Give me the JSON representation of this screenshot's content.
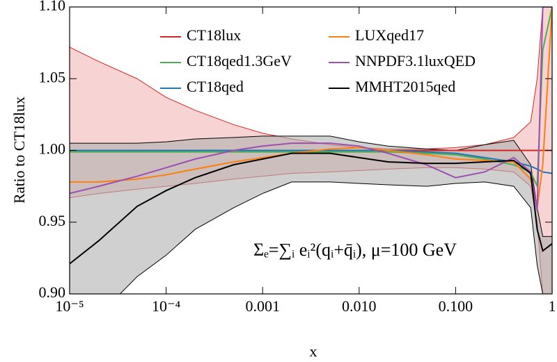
{
  "chart_data": {
    "type": "line",
    "annotation": "Σₑ=∑ᵢ eᵢ²(qᵢ+q̄ᵢ), μ=100 GeV",
    "x_label": "x",
    "y_label": "Ratio to CT18lux",
    "xscale": "log",
    "xlim": [
      1e-05,
      1
    ],
    "ylim": [
      0.9,
      1.1
    ],
    "xticks": [
      {
        "value": 1e-05,
        "label": "10⁻⁵"
      },
      {
        "value": 0.0001,
        "label": "10⁻⁴"
      },
      0.001,
      {
        "value": 0.01,
        "label": "0.010"
      },
      {
        "value": 0.1,
        "label": "0.100"
      },
      1
    ],
    "yticks": [
      {
        "value": 0.9,
        "label": "0.90"
      },
      0.95,
      {
        "value": 1.0,
        "label": "1.00"
      },
      1.05,
      {
        "value": 1.1,
        "label": "1.10"
      }
    ],
    "x": [
      1e-05,
      2e-05,
      5e-05,
      0.0001,
      0.0002,
      0.0005,
      0.001,
      0.002,
      0.005,
      0.01,
      0.02,
      0.05,
      0.1,
      0.2,
      0.4,
      0.6,
      0.7,
      0.8,
      1
    ],
    "series": [
      {
        "name": "CT18lux",
        "color": "#d62728",
        "band_color": "#f4b6b6",
        "values": [
          1,
          1,
          1,
          1,
          1,
          1,
          1,
          1,
          1,
          1,
          1,
          1,
          1,
          1,
          1,
          1,
          1,
          1,
          1
        ],
        "band_upper": [
          1.072,
          1.062,
          1.05,
          1.037,
          1.028,
          1.018,
          1.012,
          1.008,
          1.004,
          1.002,
          1.001,
          1.001,
          1.002,
          1.004,
          1.009,
          1.02,
          1.05,
          1.1,
          1.1
        ],
        "band_lower": [
          0.967,
          0.97,
          0.973,
          0.975,
          0.977,
          0.98,
          0.982,
          0.984,
          0.985,
          0.986,
          0.987,
          0.988,
          0.988,
          0.987,
          0.985,
          0.975,
          0.95,
          0.9,
          0.9
        ]
      },
      {
        "name": "CT18qed1.3GeV",
        "color": "#4daf4a",
        "values": [
          0.999,
          0.999,
          0.999,
          0.999,
          0.999,
          0.999,
          0.999,
          0.999,
          0.999,
          0.999,
          0.999,
          0.998,
          0.997,
          0.994,
          0.99,
          0.985,
          0.975,
          1.07,
          1.1
        ]
      },
      {
        "name": "CT18qed",
        "color": "#1f77b4",
        "values": [
          1,
          1,
          1,
          1,
          1,
          1,
          1,
          1,
          1,
          1,
          1,
          0.999,
          0.998,
          0.995,
          0.992,
          0.989,
          0.987,
          0.985,
          0.984
        ]
      },
      {
        "name": "LUXqed17",
        "color": "#ff7f0e",
        "values": [
          0.978,
          0.978,
          0.98,
          0.983,
          0.987,
          0.992,
          0.995,
          0.998,
          1.001,
          1.002,
          1.0,
          0.997,
          0.994,
          0.993,
          0.992,
          0.98,
          0.96,
          0.99,
          1.1
        ]
      },
      {
        "name": "NNPDF3.1luxQED",
        "color": "#9b4fb0",
        "values": [
          0.97,
          0.975,
          0.982,
          0.988,
          0.994,
          1.0,
          1.003,
          1.005,
          1.005,
          1.003,
          0.998,
          0.99,
          0.981,
          0.985,
          0.995,
          0.985,
          0.958,
          1.1,
          1.1
        ]
      },
      {
        "name": "MMHT2015qed",
        "color": "#000000",
        "band_color": "#b0b0b0",
        "values": [
          0.921,
          0.937,
          0.961,
          0.972,
          0.981,
          0.99,
          0.994,
          0.998,
          0.998,
          0.995,
          0.992,
          0.991,
          0.991,
          0.992,
          0.993,
          0.984,
          0.945,
          0.93,
          0.935
        ],
        "band_upper": [
          1.005,
          1.005,
          1.005,
          1.006,
          1.008,
          1.009,
          1.01,
          1.01,
          1.01,
          1.006,
          1.003,
          1.001,
          1.0,
          1.004,
          1.007,
          0.99,
          0.96,
          0.94,
          0.94
        ],
        "band_lower": [
          0.9,
          0.885,
          0.912,
          0.927,
          0.945,
          0.96,
          0.97,
          0.978,
          0.978,
          0.977,
          0.976,
          0.975,
          0.977,
          0.978,
          0.975,
          0.96,
          0.92,
          0.9,
          0.9
        ]
      }
    ]
  }
}
